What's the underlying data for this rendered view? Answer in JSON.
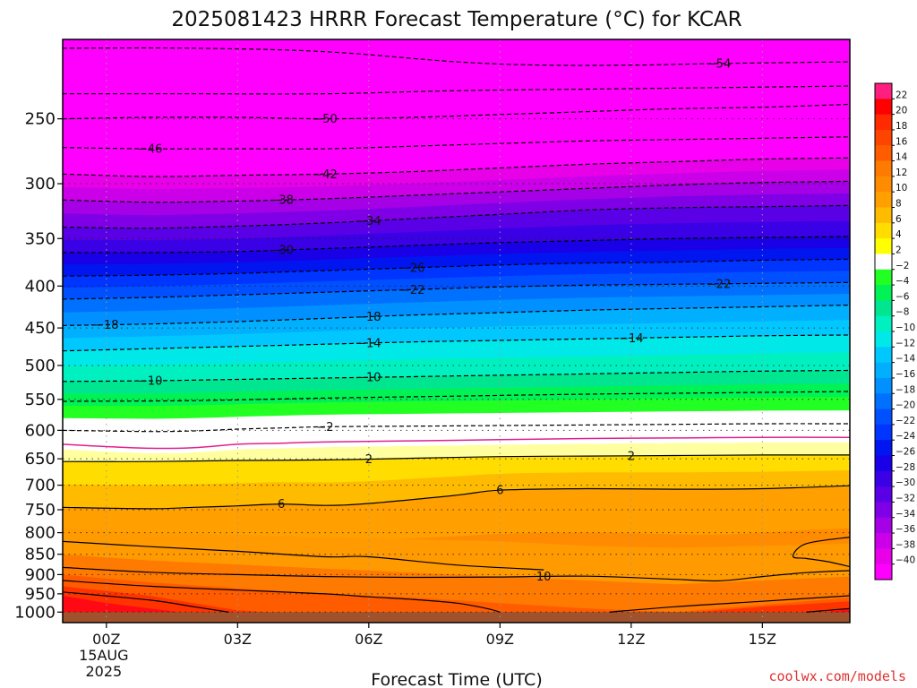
{
  "chart_data": {
    "type": "heatmap",
    "title": "2025081423 HRRR Forecast Temperature (°C) for KCAR",
    "xlabel": "Forecast Time (UTC)",
    "ylabel": "",
    "credit": "coolwx.com/models",
    "x_range_hours": [
      -1.0,
      17.0
    ],
    "y_range_hpa": [
      200,
      1030
    ],
    "y_scale": "log",
    "x_ticks": [
      {
        "hour": 0,
        "label": "00Z",
        "label2": "15AUG",
        "label3": "2025"
      },
      {
        "hour": 3,
        "label": "03Z"
      },
      {
        "hour": 6,
        "label": "06Z"
      },
      {
        "hour": 9,
        "label": "09Z"
      },
      {
        "hour": 12,
        "label": "12Z"
      },
      {
        "hour": 15,
        "label": "15Z"
      }
    ],
    "y_ticks": [
      "250",
      "300",
      "350",
      "400",
      "450",
      "500",
      "550",
      "600",
      "650",
      "700",
      "750",
      "800",
      "850",
      "900",
      "950",
      "1000"
    ],
    "grid": true,
    "colorbar": {
      "labels": [
        "22",
        "20",
        "18",
        "16",
        "14",
        "12",
        "10",
        "8",
        "6",
        "4",
        "2",
        "−2",
        "−4",
        "−6",
        "−8",
        "−10",
        "−12",
        "−14",
        "−16",
        "−18",
        "−20",
        "−22",
        "−24",
        "−26",
        "−28",
        "−30",
        "−32",
        "−34",
        "−36",
        "−38",
        "−40"
      ],
      "colors": [
        "#ff1f7f",
        "#ff0000",
        "#ff2a00",
        "#ff4400",
        "#ff5c00",
        "#ff7a00",
        "#ff8c00",
        "#ffa000",
        "#ffbb00",
        "#ffdd00",
        "#ffff00",
        "#ffffff",
        "#22ff22",
        "#00f255",
        "#00e690",
        "#00f0c0",
        "#00e8e8",
        "#00c8ff",
        "#00b0ff",
        "#0090ff",
        "#0070ff",
        "#0050ff",
        "#0034ff",
        "#0015f0",
        "#1a00e6",
        "#3a00e6",
        "#5a00e6",
        "#7f00e6",
        "#a500e6",
        "#cc00e8",
        "#e800e8",
        "#ff00ff"
      ]
    },
    "contours": [
      {
        "label": "−54",
        "hours": [
          -1,
          2,
          5,
          8,
          10,
          12,
          14,
          17
        ],
        "hpa": [
          205,
          205,
          207,
          213,
          215,
          215,
          214,
          213
        ],
        "dashed": true,
        "label_hours": [
          14
        ]
      },
      {
        "label": "−50",
        "hours": [
          -1,
          1,
          3,
          5,
          7,
          9,
          11,
          13,
          15,
          17
        ],
        "hpa": [
          250,
          249,
          249,
          250,
          249,
          247,
          245,
          243,
          242,
          240
        ],
        "dashed": true,
        "label_hours": [
          5
        ]
      },
      {
        "label": "",
        "hours": [
          -1,
          2,
          5,
          8,
          11,
          14,
          17
        ],
        "hpa": [
          233,
          233,
          233,
          231,
          230,
          229,
          228
        ],
        "dashed": true,
        "label_hours": []
      },
      {
        "label": "−46",
        "hours": [
          -1,
          1,
          3,
          5,
          7,
          9,
          11,
          13,
          15,
          17
        ],
        "hpa": [
          271,
          272,
          272,
          272,
          270,
          268,
          266,
          265,
          264,
          263
        ],
        "dashed": true,
        "label_hours": [
          1
        ]
      },
      {
        "label": "−42",
        "hours": [
          -1,
          1,
          3,
          5,
          7,
          9,
          11,
          13,
          15,
          17
        ],
        "hpa": [
          292,
          294,
          293,
          292,
          290,
          287,
          284,
          282,
          280,
          279
        ],
        "dashed": true,
        "label_hours": [
          5
        ]
      },
      {
        "label": "−38",
        "hours": [
          -1,
          1,
          3,
          5,
          7,
          9,
          11,
          13,
          15,
          17
        ],
        "hpa": [
          314,
          316,
          315,
          313,
          310,
          307,
          304,
          301,
          299,
          298
        ],
        "dashed": true,
        "label_hours": [
          4
        ]
      },
      {
        "label": "−34",
        "hours": [
          -1,
          1,
          3,
          5,
          7,
          9,
          11,
          13,
          15,
          17
        ],
        "hpa": [
          339,
          340,
          338,
          335,
          331,
          327,
          323,
          321,
          320,
          319
        ],
        "dashed": true,
        "label_hours": [
          6
        ]
      },
      {
        "label": "−30",
        "hours": [
          -1,
          1,
          3,
          5,
          7,
          9,
          11,
          13,
          15,
          17
        ],
        "hpa": [
          364,
          364,
          363,
          360,
          357,
          354,
          352,
          350,
          349,
          348
        ],
        "dashed": true,
        "label_hours": [
          4
        ]
      },
      {
        "label": "−26",
        "hours": [
          -1,
          1,
          3,
          5,
          7,
          9,
          11,
          13,
          15,
          17
        ],
        "hpa": [
          389,
          388,
          386,
          383,
          380,
          377,
          375,
          374,
          372,
          371
        ],
        "dashed": true,
        "label_hours": [
          7
        ]
      },
      {
        "label": "−22",
        "hours": [
          -1,
          1,
          3,
          5,
          7,
          9,
          11,
          13,
          15,
          17
        ],
        "hpa": [
          415,
          413,
          410,
          407,
          404,
          401,
          399,
          398,
          397,
          396
        ],
        "dashed": true,
        "label_hours": [
          7,
          14
        ]
      },
      {
        "label": "−18",
        "hours": [
          -1,
          1,
          3,
          5,
          7,
          9,
          11,
          13,
          15,
          17
        ],
        "hpa": [
          447,
          445,
          442,
          438,
          434,
          431,
          428,
          426,
          424,
          422
        ],
        "dashed": true,
        "label_hours": [
          0,
          6
        ]
      },
      {
        "label": "−14",
        "hours": [
          -1,
          1,
          3,
          5,
          7,
          9,
          11,
          13,
          15,
          17
        ],
        "hpa": [
          480,
          477,
          474,
          471,
          468,
          466,
          464,
          462,
          460,
          459
        ],
        "dashed": true,
        "label_hours": [
          6,
          12
        ]
      },
      {
        "label": "−10",
        "hours": [
          -1,
          1,
          3,
          5,
          7,
          9,
          11,
          13,
          15,
          17
        ],
        "hpa": [
          523,
          522,
          520,
          518,
          516,
          514,
          512,
          510,
          508,
          507
        ],
        "dashed": true,
        "label_hours": [
          1,
          6
        ]
      },
      {
        "label": "",
        "hours": [
          -1,
          2,
          5,
          8,
          11,
          14,
          17
        ],
        "hpa": [
          553,
          552,
          548,
          545,
          542,
          540,
          538
        ],
        "dashed": true,
        "label_hours": []
      },
      {
        "label": "−2",
        "hours": [
          -1,
          1,
          2,
          3,
          4,
          5,
          7,
          9,
          11,
          13,
          15,
          17
        ],
        "hpa": [
          600,
          602,
          601,
          598,
          596,
          594,
          593,
          592,
          591,
          590,
          589,
          589
        ],
        "dashed": true,
        "label_hours": [
          5
        ]
      },
      {
        "label": "2",
        "hours": [
          -1,
          1,
          3,
          5,
          7,
          9,
          11,
          13,
          15,
          17
        ],
        "hpa": [
          655,
          655,
          653,
          652,
          649,
          646,
          645,
          644,
          643,
          643
        ],
        "dashed": false,
        "label_hours": [
          6,
          12
        ]
      },
      {
        "label": "6",
        "hours": [
          -1,
          1,
          2,
          3,
          4,
          5,
          6,
          8,
          9,
          11,
          13,
          15,
          17
        ],
        "hpa": [
          745,
          748,
          745,
          742,
          738,
          741,
          737,
          720,
          710,
          707,
          708,
          707,
          701
        ],
        "dashed": false,
        "label_hours": [
          4,
          9
        ]
      },
      {
        "label": "10",
        "hours": [
          -1,
          1,
          3,
          5,
          7,
          9,
          11,
          13,
          14,
          15,
          16,
          17
        ],
        "hpa": [
          882,
          894,
          900,
          905,
          907,
          906,
          904,
          912,
          916,
          905,
          895,
          890
        ],
        "dashed": false,
        "label_hours": [
          10
        ]
      },
      {
        "label": "",
        "hours": [
          -1,
          1,
          3,
          5,
          6,
          8,
          10
        ],
        "hpa": [
          820,
          832,
          843,
          856,
          856,
          876,
          888
        ],
        "dashed": false,
        "label_hours": []
      },
      {
        "label": "",
        "hours": [
          -1,
          1,
          3,
          5,
          6,
          7,
          8,
          8.7,
          9
        ],
        "hpa": [
          915,
          930,
          940,
          950,
          958,
          965,
          975,
          990,
          1000
        ],
        "dashed": false,
        "label_hours": []
      },
      {
        "label": "",
        "hours": [
          -1,
          1,
          2,
          2.8
        ],
        "hpa": [
          945,
          967,
          985,
          1000
        ],
        "dashed": false,
        "label_hours": []
      },
      {
        "label": "",
        "hours": [
          11.5,
          13,
          15,
          17
        ],
        "hpa": [
          1000,
          985,
          970,
          955
        ],
        "dashed": false,
        "label_hours": []
      },
      {
        "label": "",
        "hours": [
          16,
          16.5,
          17
        ],
        "hpa": [
          1000,
          995,
          990
        ],
        "dashed": false,
        "label_hours": []
      },
      {
        "label": "",
        "hours": [
          17,
          16,
          15.7,
          16,
          16.5,
          17
        ],
        "hpa": [
          810,
          825,
          855,
          860,
          868,
          880
        ],
        "dashed": false,
        "label_hours": []
      }
    ],
    "freezing_line": {
      "hours": [
        -1,
        0,
        1,
        2,
        3,
        4,
        5,
        7,
        9,
        11,
        13,
        15,
        17
      ],
      "hpa": [
        624,
        628,
        631,
        630,
        624,
        622,
        620,
        618,
        616,
        614,
        613,
        612,
        612
      ],
      "color": "#e0208f"
    },
    "ground": {
      "hpa_top": 1000,
      "color": "#a0522d"
    }
  }
}
